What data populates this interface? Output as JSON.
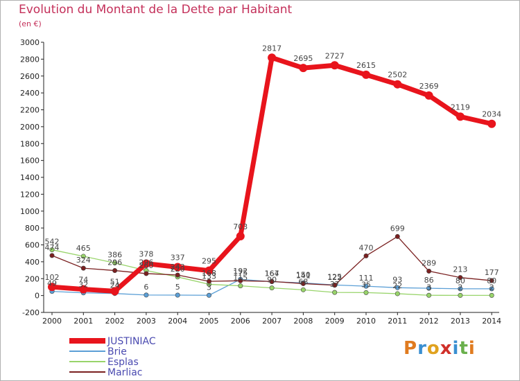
{
  "header": {
    "title": "Evolution du Montant de la Dette par Habitant",
    "subtitle": "(en €)"
  },
  "logo": {
    "text": "Proxiti",
    "letters": [
      {
        "ch": "P",
        "color": "#e07b1f"
      },
      {
        "ch": "r",
        "color": "#3a8fd1"
      },
      {
        "ch": "o",
        "color": "#e0a21f"
      },
      {
        "ch": "x",
        "color": "#d0302a"
      },
      {
        "ch": "i",
        "color": "#3a8fd1"
      },
      {
        "ch": "t",
        "color": "#6ab04c"
      },
      {
        "ch": "i",
        "color": "#e07b1f"
      }
    ]
  },
  "chart_data": {
    "type": "line",
    "title": "Evolution du Montant de la Dette par Habitant",
    "ylabel": "(en €)",
    "xlabel": "",
    "ylim": [
      -200,
      3000
    ],
    "yticks": [
      -200,
      0,
      200,
      400,
      600,
      800,
      1000,
      1200,
      1400,
      1600,
      1800,
      2000,
      2200,
      2400,
      2600,
      2800,
      3000
    ],
    "categories": [
      "2000",
      "2001",
      "2002",
      "2003",
      "2004",
      "2005",
      "2006",
      "2007",
      "2008",
      "2009",
      "2010",
      "2011",
      "2012",
      "2013",
      "2014"
    ],
    "grid": false,
    "legend": "bottom-left",
    "series": [
      {
        "name": "JUSTINIAC",
        "color": "#e8141c",
        "values": [
          102,
          74,
          51,
          378,
          337,
          295,
          703,
          2817,
          2695,
          2727,
          2615,
          2502,
          2369,
          2119,
          2034
        ]
      },
      {
        "name": "Brie",
        "color": "#5b9fd6",
        "values": [
          49,
          32,
          24,
          6,
          5,
          3,
          192,
          164,
          150,
          125,
          111,
          93,
          86,
          80,
          80
        ]
      },
      {
        "name": "Esplas",
        "color": "#98d46a",
        "values": [
          542,
          465,
          386,
          296,
          220,
          133,
          115,
          90,
          68,
          37,
          35,
          22,
          3,
          2,
          2
        ]
      },
      {
        "name": "Marliac",
        "color": "#7a2020",
        "values": [
          474,
          324,
          296,
          260,
          243,
          168,
          175,
          167,
          141,
          122,
          470,
          699,
          289,
          213,
          177
        ]
      }
    ]
  }
}
